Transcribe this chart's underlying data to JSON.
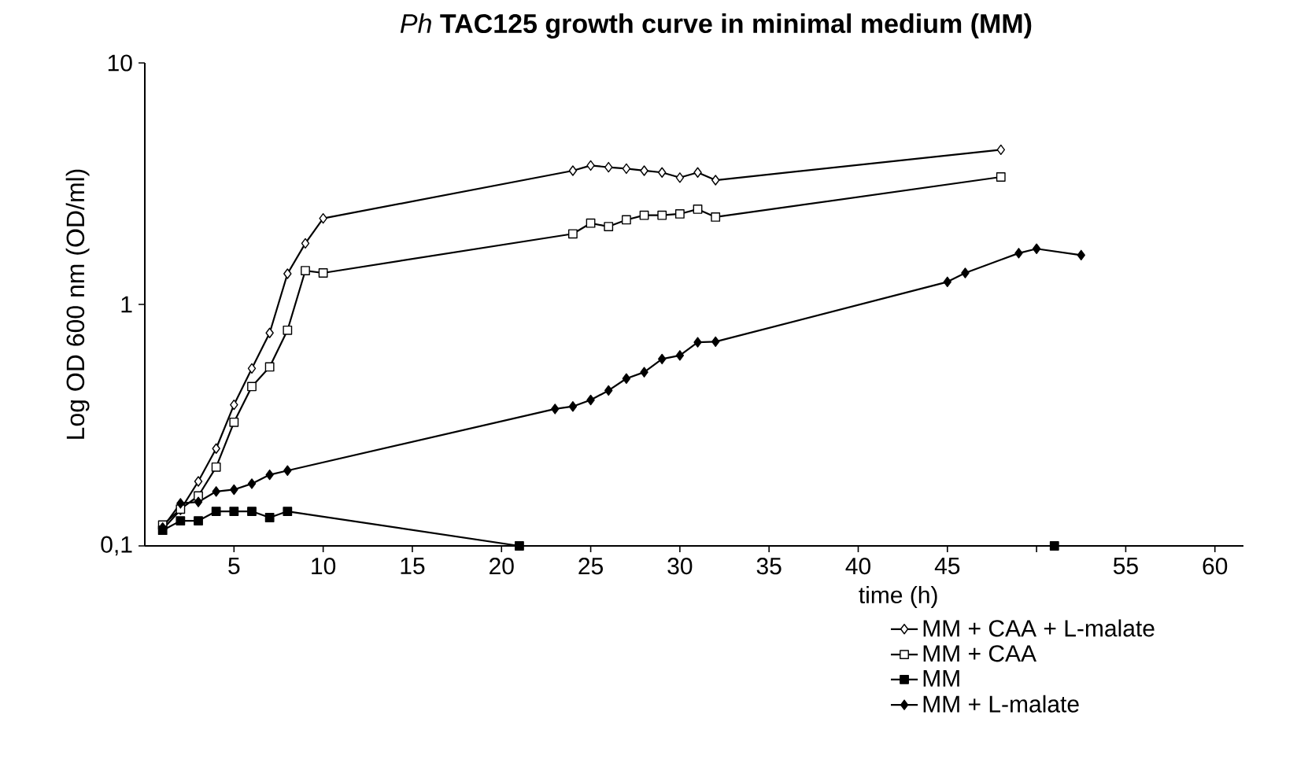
{
  "chart_data": {
    "type": "line",
    "title": "*Ph* **TAC125 growth curve in minimal medium (MM)**",
    "xlabel": "time (h)",
    "ylabel": "Log OD 600 nm (OD/ml)",
    "log": "y",
    "legend": "bottom right",
    "line_style": "solid",
    "xlim": [
      0,
      61.6
    ],
    "ylim": [
      0.1,
      10
    ],
    "xticks": [
      5,
      10,
      15,
      20,
      25,
      30,
      35,
      40,
      45,
      {
        "value": 50,
        "label": null
      },
      55,
      60
    ],
    "yticks": [
      {
        "value": 0.1,
        "label": "0,1"
      },
      1,
      10
    ],
    "series": [
      {
        "name": "MM + CAA + L-malate",
        "color": "#000000",
        "marker": "diamond",
        "x": [
          1,
          2,
          3,
          4,
          5,
          6,
          7,
          8,
          9,
          10,
          24,
          25,
          26,
          27,
          28,
          29,
          30,
          31,
          32,
          48
        ],
        "values": [
          0.117,
          0.141,
          0.185,
          0.253,
          0.384,
          0.543,
          0.762,
          1.34,
          1.79,
          2.27,
          3.58,
          3.76,
          3.7,
          3.65,
          3.58,
          3.52,
          3.35,
          3.52,
          3.27,
          4.37
        ]
      },
      {
        "name": "MM + CAA",
        "color": "#000000",
        "marker": "square",
        "x": [
          1,
          2,
          3,
          4,
          5,
          6,
          7,
          8,
          9,
          10,
          24,
          25,
          26,
          27,
          28,
          29,
          30,
          31,
          32,
          48
        ],
        "values": [
          0.122,
          0.142,
          0.161,
          0.212,
          0.325,
          0.457,
          0.551,
          0.782,
          1.38,
          1.35,
          1.96,
          2.17,
          2.1,
          2.24,
          2.34,
          2.34,
          2.37,
          2.48,
          2.3,
          3.37
        ]
      },
      {
        "name": "MM",
        "color": "#000000",
        "marker": "square",
        "x": [
          1,
          2,
          3,
          4,
          5,
          6,
          7,
          8,
          21,
          51
        ],
        "values": [
          0.116,
          0.127,
          0.127,
          0.139,
          0.139,
          0.139,
          0.131,
          0.139,
          0.1,
          0.1
        ]
      },
      {
        "name": "MM + L-malate",
        "color": "#000000",
        "marker": "diamond",
        "x": [
          1,
          2,
          3,
          4,
          5,
          6,
          7,
          8,
          23,
          24,
          25,
          26,
          27,
          28,
          29,
          30,
          31,
          32,
          45,
          46,
          49,
          50,
          52.5
        ],
        "values": [
          0.119,
          0.15,
          0.152,
          0.168,
          0.171,
          0.181,
          0.197,
          0.205,
          0.369,
          0.378,
          0.402,
          0.44,
          0.493,
          0.524,
          0.594,
          0.615,
          0.697,
          0.701,
          1.24,
          1.35,
          1.63,
          1.7,
          1.6
        ]
      }
    ]
  }
}
